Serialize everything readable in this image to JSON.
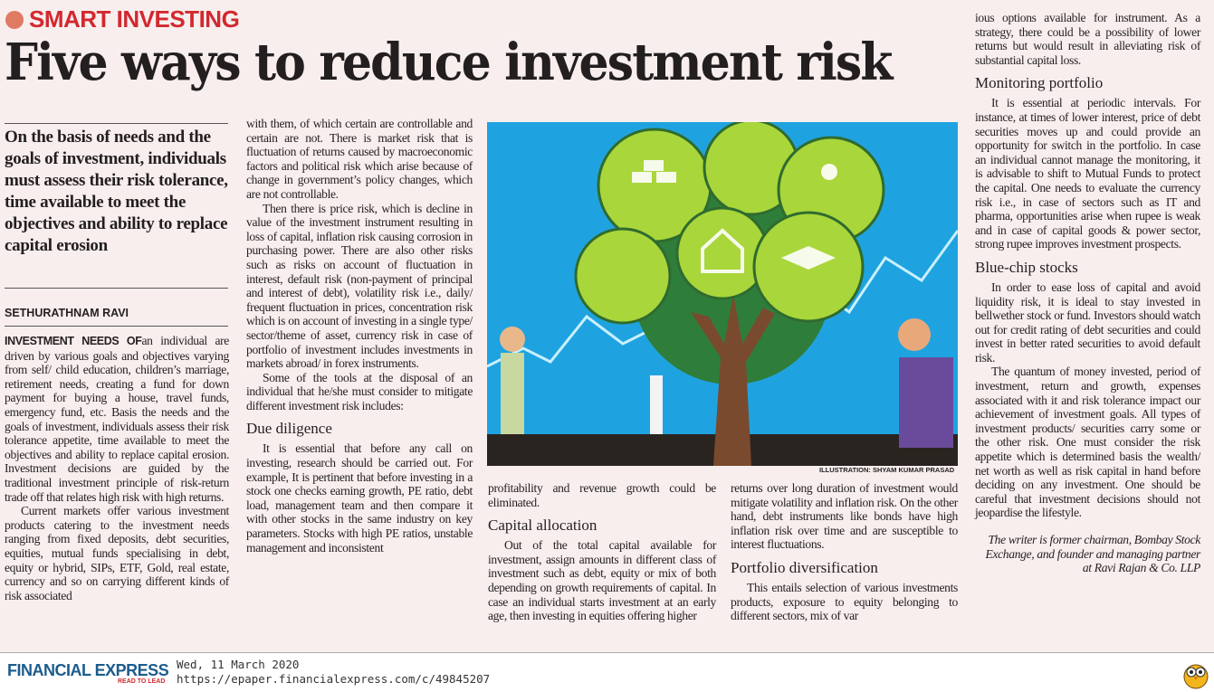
{
  "kicker": "SMART INVESTING",
  "headline": "Five ways to reduce investment risk",
  "deck": "On the basis of needs and the goals of investment, individuals must assess their risk tolerance, time available to meet the objectives and ability to replace capital erosion",
  "byline": "SETHURATHNAM RAVI",
  "col1": {
    "lead": "INVESTMENT NEEDS OF",
    "p1": "an individual are driven by various goals and objectives varying from self/ child education, chil­dren’s marriage, retirement needs, creat­ing a fund for down payment for buying a house, travel funds, emergency fund, etc. Basis the needs and the goals of invest­ment, individuals assess their risk toler­ance appetite, time available to meet the objectives and ability to replace capital erosion. Investment decisions are guided by the traditional investment principle of risk-return trade off that relates high risk with high returns.",
    "p2": "Current markets offer various invest­ment products catering to the investment needs ranging from fixed deposits, debt securities, equities, mutual funds special­ising in debt, equity or hybrid, SIPs, ETF, Gold, real estate, currency and so on car­rying different kinds of risk associated"
  },
  "col2": {
    "p1": "with them, of which certain are control­lable and certain are not. There is market risk that is fluctuation of returns caused by macroeconomic factors and political risk which arise because of change in government’s policy changes, which are not controllable.",
    "p2": "Then there is price risk, which is decline in value of the investment instrument resulting in loss of capital, inflation risk causing corrosion in purchasing power. There are also other risks such as risks on account of fluctuation in interest, default risk (non-payment of principal and inter­est of debt), volatility risk i.e., daily/ fre­quent fluctuation in prices, concentration risk which is on account of investing in a single type/ sector/theme of asset, cur­rency risk in case of portfolio of invest­ment includes investments in markets abroad/ in forex instruments.",
    "p3": "Some of the tools at the disposal of an individual that he/she must consider to mitigate different investment risk includes:",
    "h1": "Due diligence",
    "p4": "It is essential that before any call on investing, research should be carried out. For example, It is pertinent that before investing in a stock one checks earning growth, PE ratio, debt load, management team and then compare it with other stocks in the same industry on key para­meters. Stocks with high PE ratios, unsta­ble management and inconsistent"
  },
  "col3": {
    "p1": "profitability and revenue growth could be eliminated.",
    "h1": "Capital allocation",
    "p2": "Out of the total capital available for investment, assign amounts in different class of investment such as debt, equity or mix of both depending on growth require­ments of capital. In case an individual starts investment at an early age, then investing in equities offering higher"
  },
  "col4": {
    "p1": "returns over long duration of investment would mitigate volatility and inflation risk. On the other hand, debt instruments like bonds have high inflation risk over time and are susceptible to interest fluc­tuations.",
    "h1": "Portfolio diversification",
    "p2": "This entails selection of various invest­ments products, exposure to equity belonging to different sectors, mix of var­"
  },
  "col5": {
    "p1": "ious options available for instrument. As a strategy, there could be a possibility of lower returns but would result in alleviat­ing risk of substantial capital loss.",
    "h1": "Monitoring portfolio",
    "p2": "It is essential at periodic intervals. For instance, at times of lower interest, price of debt securities moves up and could pro­vide an opportunity for switch in the port­folio. In case an individual cannot manage the monitoring, it is advisable to shift to Mutual Funds to protect the capital. One needs to evaluate the currency risk i.e., in case of sectors such as IT and pharma, opportunities arise when rupee is weak and in case of capital goods & power sector, strong rupee improves investment prospects.",
    "h2": "Blue-chip stocks",
    "p3": "In order to ease loss of capital and avoid liquidity risk, it is ideal to stay invested in bellwether stock or fund. Investors should watch out for credit rating of debt securi­ties and could invest in better rated secu­rities to avoid default risk.",
    "p4": "The quantum of money invested, period of investment, return and growth, expenses associated with it and risk toler­ance impact our achievement of invest­ment goals. All types of investment prod­ucts/ securities carry some or the other risk. One must consider the risk appetite which is determined basis the wealth/ net worth as well as risk capital in hand before deciding on any investment. One should be careful that investment decisions should not jeopardise the lifestyle.",
    "bio": "The writer is former chairman, Bombay Stock Exchange, and founder and managing partner at Ravi Rajan & Co. LLP"
  },
  "illustration_credit": "ILLUSTRATION: SHYAM KUMAR PRASAD",
  "footer": {
    "logo": "FINANCIAL EXPRESS",
    "tagline": "READ TO LEAD",
    "date": "Wed, 11 March 2020",
    "url": "https://epaper.financialexpress.com/c/49845207"
  },
  "colors": {
    "kicker": "#d1292f",
    "background": "#f9eeee",
    "logo": "#1c5c8c",
    "illustration_bg": "#1fa3e0"
  }
}
